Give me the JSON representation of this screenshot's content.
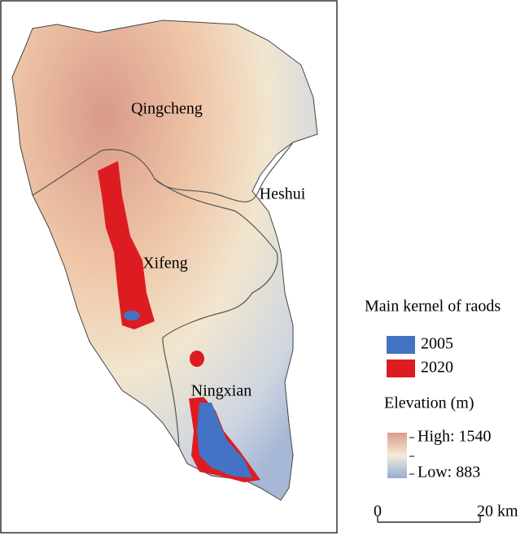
{
  "map": {
    "regions": [
      "Qingcheng",
      "Heshui",
      "Xifeng",
      "Ningxian"
    ],
    "legend": {
      "title": "Main kernel of raods",
      "entries": [
        {
          "label": "2005",
          "color": "#4472c4"
        },
        {
          "label": "2020",
          "color": "#dd1c22"
        }
      ]
    },
    "elevation": {
      "title": "Elevation (m)",
      "high": "High: 1540",
      "low": "Low: 883"
    },
    "scale_bar": {
      "start": "0",
      "end": "20 km"
    }
  }
}
